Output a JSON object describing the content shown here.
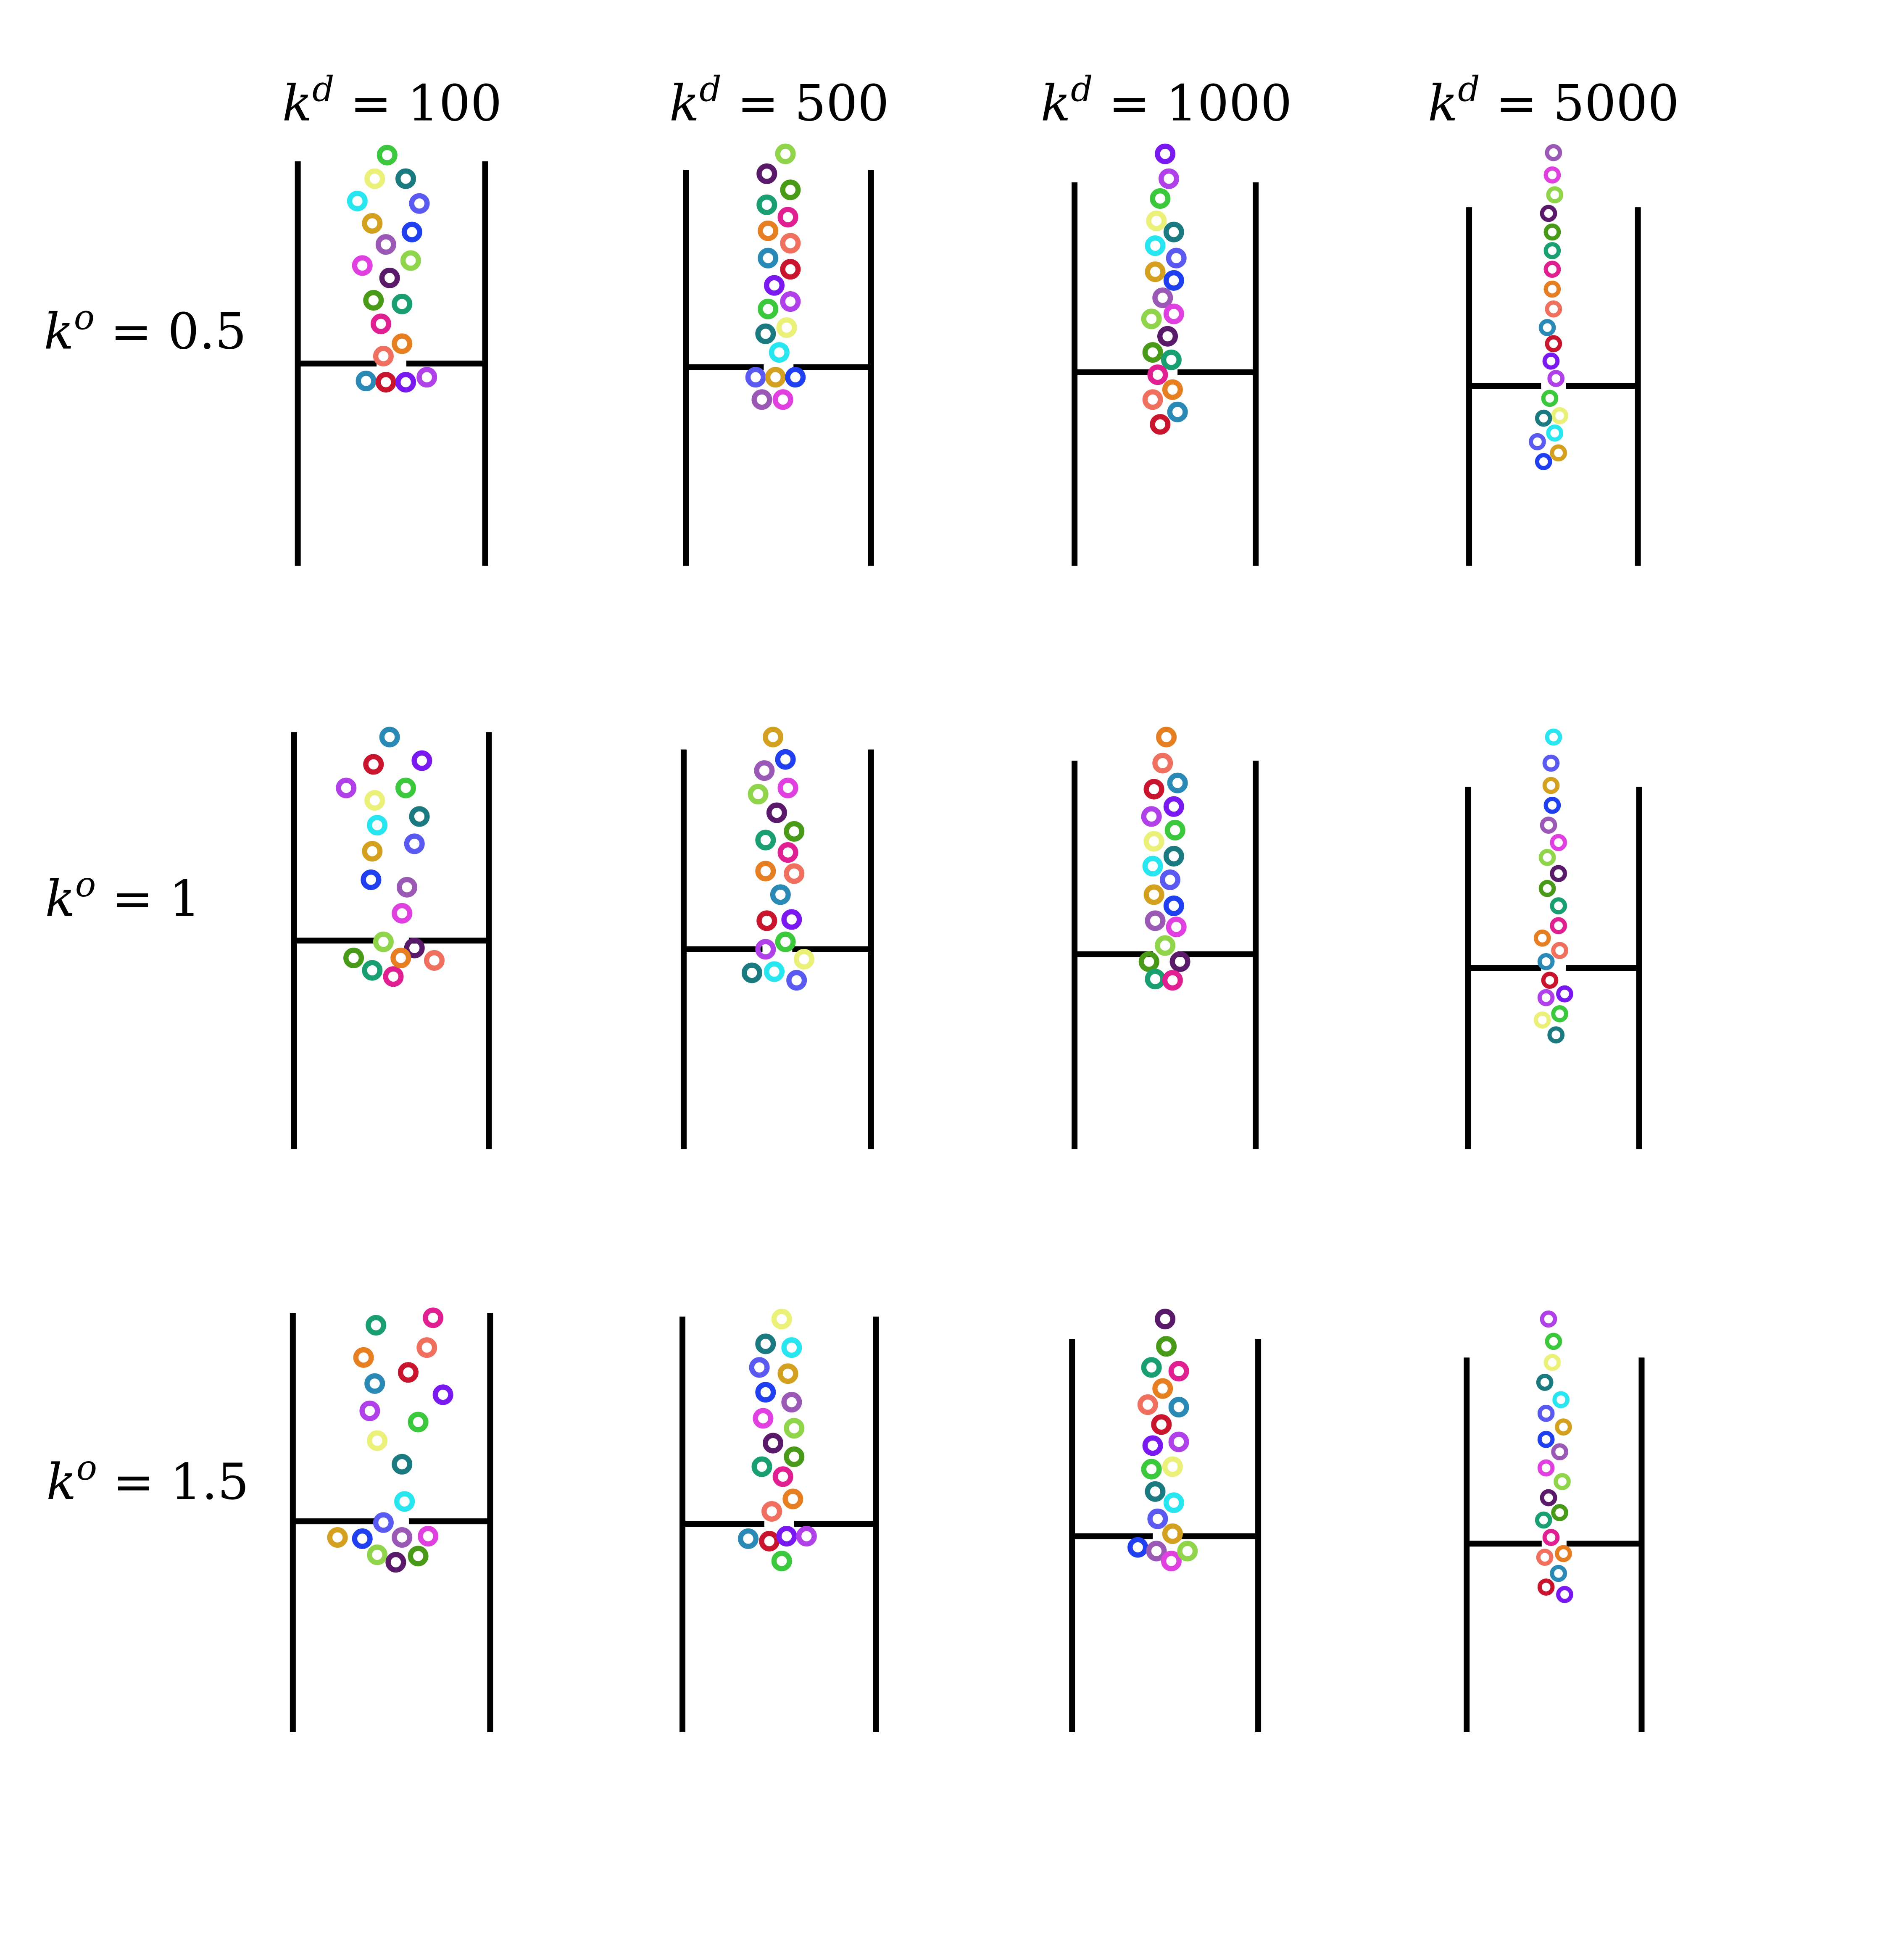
{
  "colors": {
    "walls": "#000000",
    "background": "#ffffff",
    "particle_palette": [
      "#3cc83c",
      "#9b59b6",
      "#e67e22",
      "#eaf078",
      "#e040e0",
      "#f07060",
      "#1a7a80",
      "#8fd44b",
      "#2a8ab5",
      "#27e6f0",
      "#5a1a6a",
      "#c8142c",
      "#5a5af0",
      "#4a9a1a",
      "#7a18f0",
      "#d4a020",
      "#1aa070",
      "#b040e8",
      "#2040f0",
      "#e02090"
    ]
  },
  "columns": [
    {
      "symbol": "k",
      "sup": "d",
      "value": "100"
    },
    {
      "symbol": "k",
      "sup": "d",
      "value": "500"
    },
    {
      "symbol": "k",
      "sup": "d",
      "value": "1000"
    },
    {
      "symbol": "k",
      "sup": "d",
      "value": "5000"
    }
  ],
  "rows": [
    {
      "symbol": "k",
      "sup": "o",
      "value": "0.5"
    },
    {
      "symbol": "k",
      "sup": "o",
      "value": "1"
    },
    {
      "symbol": "k",
      "sup": "o",
      "value": "1.5"
    }
  ],
  "panels": [
    {
      "row": 0,
      "col": 0,
      "icon": "particle-hopper-panel"
    },
    {
      "row": 0,
      "col": 1,
      "icon": "particle-hopper-panel"
    },
    {
      "row": 0,
      "col": 2,
      "icon": "particle-hopper-panel"
    },
    {
      "row": 0,
      "col": 3,
      "icon": "particle-hopper-panel"
    },
    {
      "row": 1,
      "col": 0,
      "icon": "particle-hopper-panel"
    },
    {
      "row": 1,
      "col": 1,
      "icon": "particle-hopper-panel"
    },
    {
      "row": 1,
      "col": 2,
      "icon": "particle-hopper-panel"
    },
    {
      "row": 1,
      "col": 3,
      "icon": "particle-hopper-panel"
    },
    {
      "row": 2,
      "col": 0,
      "icon": "particle-hopper-panel"
    },
    {
      "row": 2,
      "col": 1,
      "icon": "particle-hopper-panel"
    },
    {
      "row": 2,
      "col": 2,
      "icon": "particle-hopper-panel"
    },
    {
      "row": 2,
      "col": 3,
      "icon": "particle-hopper-panel"
    }
  ]
}
